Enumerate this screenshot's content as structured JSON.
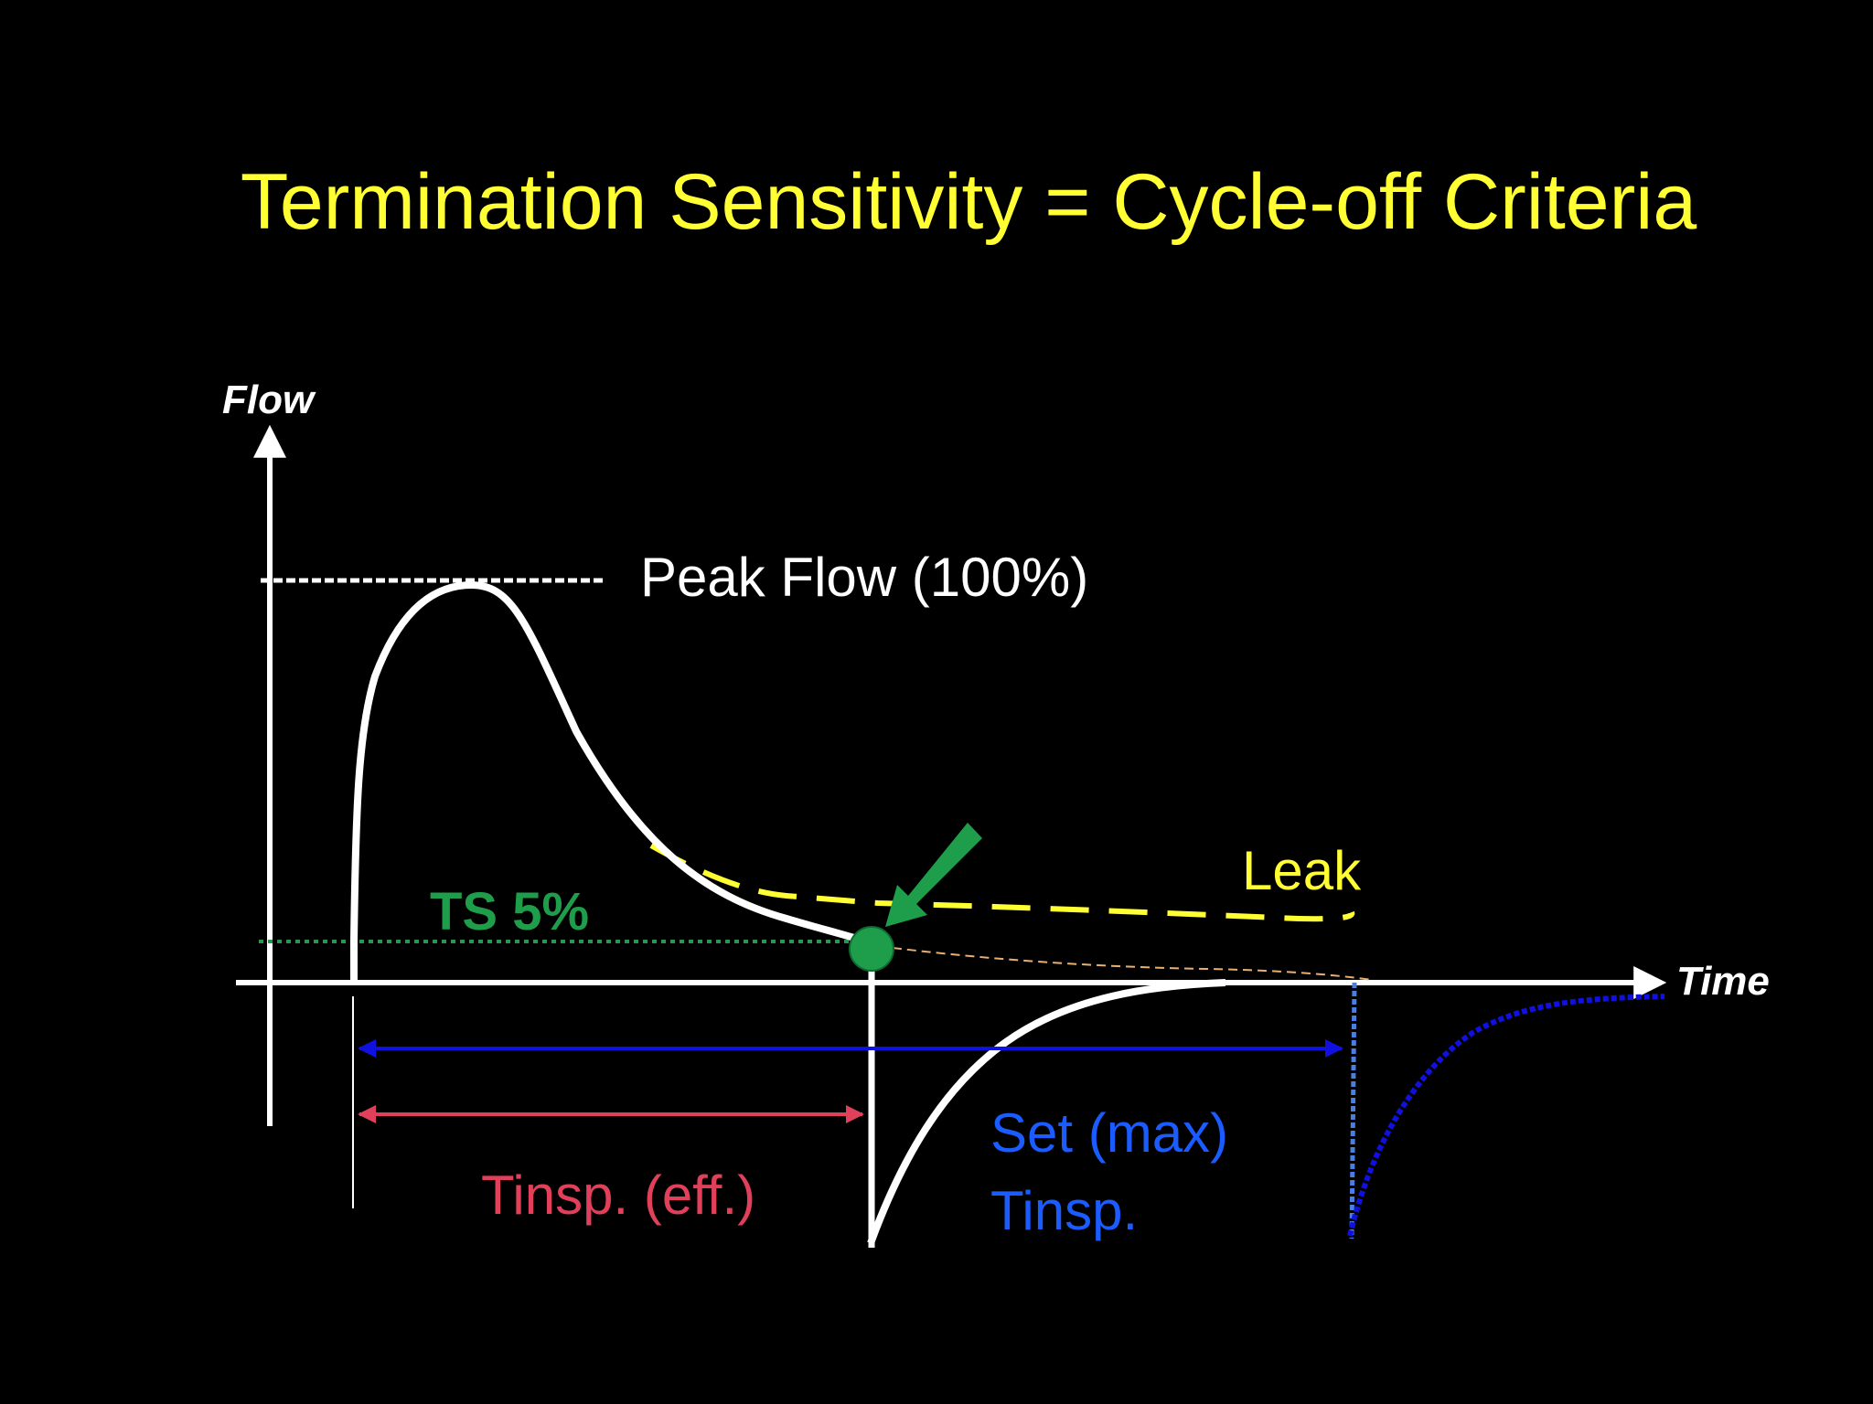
{
  "title": "Termination Sensitivity = Cycle-off Criteria",
  "axes": {
    "y_label": "Flow",
    "x_label": "Time"
  },
  "labels": {
    "peak_flow": "Peak Flow (100%)",
    "leak": "Leak",
    "ts": "TS 5%",
    "tinsp_eff": "Tinsp. (eff.)",
    "set_max_line1": "Set (max)",
    "set_max_line2": "Tinsp."
  },
  "colors": {
    "background": "#000000",
    "title": "#ffff33",
    "axis": "#ffffff",
    "flow_curve": "#ffffff",
    "leak": "#ffff33",
    "ts": "#1e9e4a",
    "tinsp_eff": "#e0405a",
    "set_max": "#1a5cff",
    "set_max_arrow": "#1010e0",
    "arrow_indicator": "#1e9e4a",
    "leak_extrapolation": "#e8b070"
  },
  "icons": {
    "cycle_off_point": "green-circle",
    "pointer": "green-arrow"
  }
}
